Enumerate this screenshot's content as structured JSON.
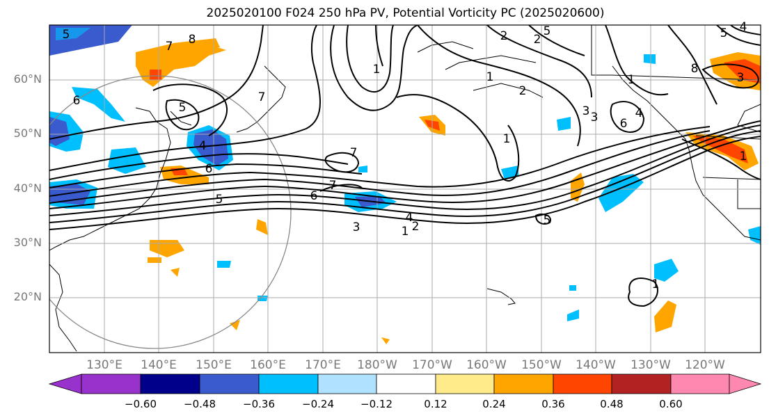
{
  "title": "2025020100 F024 250 hPa PV, Potential Vorticity PC (2025020600)",
  "lat_labels": [
    "60°N",
    "50°N",
    "40°N",
    "30°N",
    "20°N"
  ],
  "lon_labels": [
    "130°E",
    "140°E",
    "150°E",
    "160°E",
    "170°E",
    "180°W",
    "170°W",
    "160°W",
    "150°W",
    "140°W",
    "130°W",
    "120°W"
  ],
  "colorbar": {
    "ticks": [
      "−0.60",
      "−0.48",
      "−0.36",
      "−0.24",
      "−0.12",
      "0.12",
      "0.24",
      "0.36",
      "0.48",
      "0.60"
    ],
    "colors": [
      "#9932cc",
      "#00008b",
      "#3a5bcd",
      "#00bfff",
      "#b0e2ff",
      "#ffffff",
      "#ffeb8a",
      "#ffa500",
      "#ff4500",
      "#b22222",
      "#ff88b0"
    ]
  },
  "contour_labels": [
    "8",
    "7",
    "6",
    "5",
    "4",
    "3",
    "2",
    "1",
    "1",
    "1",
    "1",
    "2",
    "2",
    "3",
    "4",
    "5",
    "5",
    "6",
    "6",
    "7",
    "7",
    "7",
    "8",
    "3",
    "1",
    "2",
    "3",
    "4",
    "5",
    "6",
    "1",
    "1",
    "5",
    "4",
    "5"
  ]
}
